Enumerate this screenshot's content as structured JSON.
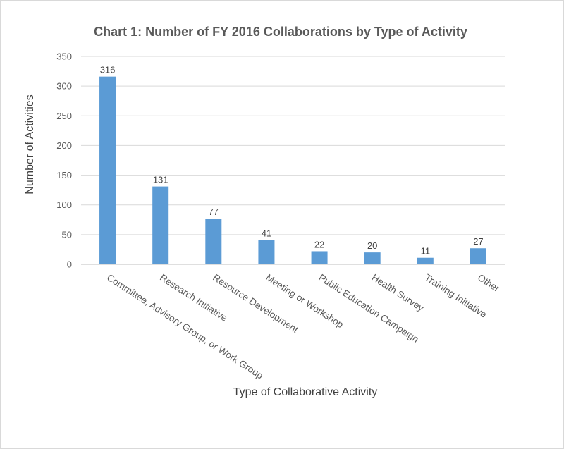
{
  "chart_data": {
    "type": "bar",
    "title": "Chart  1: Number of FY 2016 Collaborations  by Type of Activity",
    "xlabel": "Type of Collaborative Activity",
    "ylabel": "Number of Activities",
    "ylim": [
      0,
      350
    ],
    "yticks": [
      0,
      50,
      100,
      150,
      200,
      250,
      300,
      350
    ],
    "grid": true,
    "legend": "none",
    "categories": [
      "Committee, Advisory Group, or Work Group",
      "Research Initiative",
      "Resource Development",
      "Meeting or Workshop",
      "Public Education Campaign",
      "Health Survey",
      "Training Initiative",
      "Other"
    ],
    "values": [
      316,
      131,
      77,
      41,
      22,
      20,
      11,
      27
    ],
    "bar_color": "#5b9bd5"
  }
}
